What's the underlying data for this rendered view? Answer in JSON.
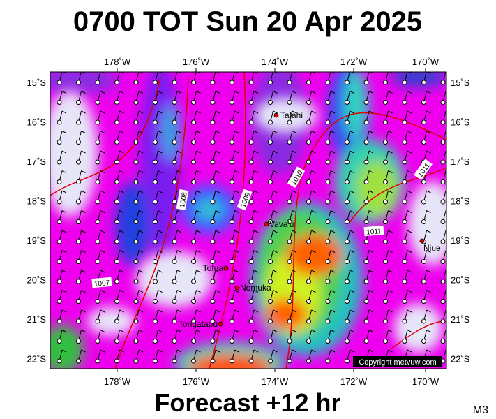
{
  "header": {
    "title": "0700 TOT Sun 20 Apr 2025"
  },
  "axes": {
    "longitudes": [
      "178˚W",
      "176˚W",
      "174˚W",
      "172˚W",
      "170˚W"
    ],
    "latitudes": [
      "15˚S",
      "16˚S",
      "17˚S",
      "18˚S",
      "19˚S",
      "20˚S",
      "21˚S",
      "22˚S"
    ]
  },
  "places": [
    "Tafahi",
    "Vava'u",
    "Niue",
    "Tofua",
    "Nomuka",
    "Tongatapu"
  ],
  "isobars": [
    "1008",
    "1009",
    "1010",
    "1011",
    "1007",
    "1011"
  ],
  "copyright": "Copyright metvuw.com",
  "footer": {
    "forecast": "Forecast +12 hr",
    "code": "M3"
  }
}
